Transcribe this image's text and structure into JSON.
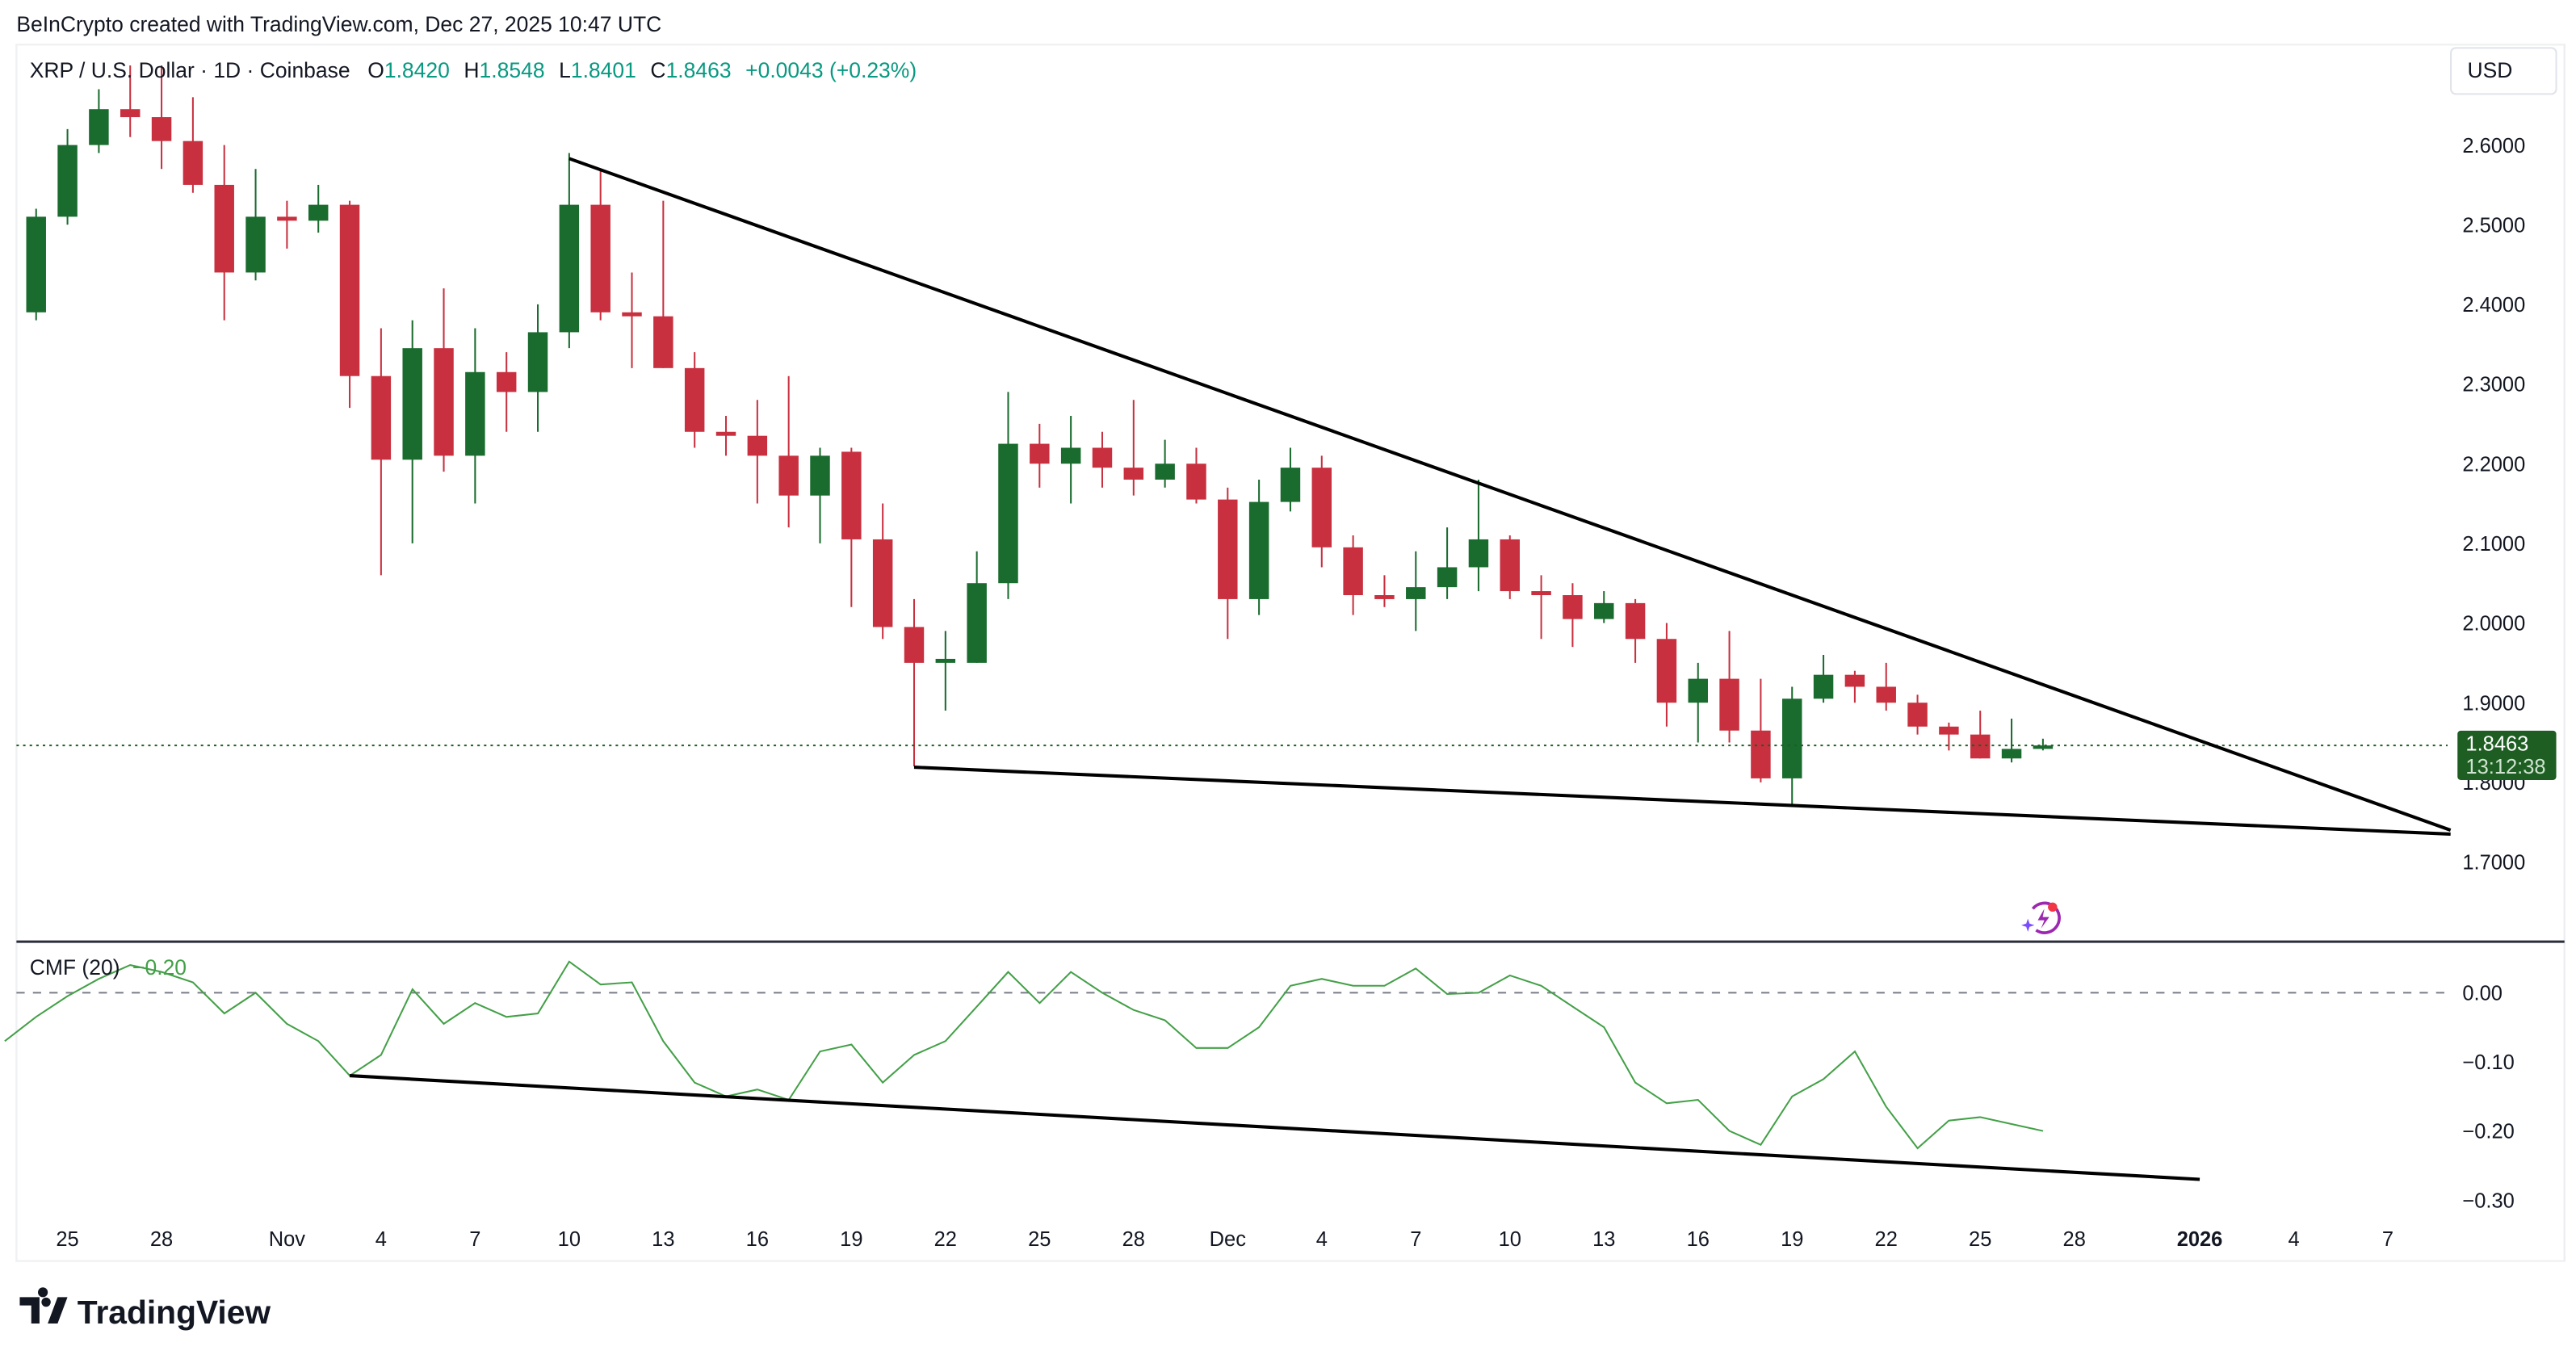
{
  "header": {
    "credit": "BeInCrypto created with TradingView.com, Dec 27, 2025 10:47 UTC"
  },
  "legend": {
    "symbol": "XRP / U.S. Dollar · 1D · Coinbase",
    "o_label": "O",
    "o": "1.8420",
    "h_label": "H",
    "h": "1.8548",
    "l_label": "L",
    "l": "1.8401",
    "c_label": "C",
    "c": "1.8463",
    "change": "+0.0043 (+0.23%)"
  },
  "currency_button": "USD",
  "last_price": {
    "price": "1.8463",
    "countdown": "13:12:38",
    "value": 1.8463
  },
  "colors": {
    "up": "#1a6b2e",
    "down": "#c8303f",
    "cmf": "#43a047",
    "label_bg": "#1e5e22",
    "accent_text": "#089981"
  },
  "icons": {
    "assistant": "lightning-sparkle-icon",
    "logo": "tradingview-logo"
  },
  "logo_text": "TradingView",
  "chart_data": [
    {
      "type": "candlestick",
      "title": "XRP / U.S. Dollar · 1D · Coinbase",
      "ylim": [
        1.63,
        2.72
      ],
      "y_ticks": [
        "2.6000",
        "2.5000",
        "2.4000",
        "2.3000",
        "2.2000",
        "2.1000",
        "2.0000",
        "1.9000",
        "1.8000",
        "1.7000"
      ],
      "x_ticks": [
        {
          "label": "25",
          "date": "2025-10-25"
        },
        {
          "label": "28",
          "date": "2025-10-28"
        },
        {
          "label": "Nov",
          "date": "2025-11-01"
        },
        {
          "label": "4",
          "date": "2025-11-04"
        },
        {
          "label": "7",
          "date": "2025-11-07"
        },
        {
          "label": "10",
          "date": "2025-11-10"
        },
        {
          "label": "13",
          "date": "2025-11-13"
        },
        {
          "label": "16",
          "date": "2025-11-16"
        },
        {
          "label": "19",
          "date": "2025-11-19"
        },
        {
          "label": "22",
          "date": "2025-11-22"
        },
        {
          "label": "25",
          "date": "2025-11-25"
        },
        {
          "label": "28",
          "date": "2025-11-28"
        },
        {
          "label": "Dec",
          "date": "2025-12-01"
        },
        {
          "label": "4",
          "date": "2025-12-04"
        },
        {
          "label": "7",
          "date": "2025-12-07"
        },
        {
          "label": "10",
          "date": "2025-12-10"
        },
        {
          "label": "13",
          "date": "2025-12-13"
        },
        {
          "label": "16",
          "date": "2025-12-16"
        },
        {
          "label": "19",
          "date": "2025-12-19"
        },
        {
          "label": "22",
          "date": "2025-12-22"
        },
        {
          "label": "25",
          "date": "2025-12-25"
        },
        {
          "label": "28",
          "date": "2025-12-28"
        },
        {
          "label": "2026",
          "date": "2026-01-01",
          "bold": true
        },
        {
          "label": "4",
          "date": "2026-01-04"
        },
        {
          "label": "7",
          "date": "2026-01-07"
        }
      ],
      "candles_columns": [
        "date",
        "open",
        "high",
        "low",
        "close"
      ],
      "candles": [
        [
          "2025-10-24",
          2.39,
          2.52,
          2.38,
          2.51
        ],
        [
          "2025-10-25",
          2.51,
          2.62,
          2.5,
          2.6
        ],
        [
          "2025-10-26",
          2.6,
          2.67,
          2.59,
          2.645
        ],
        [
          "2025-10-27",
          2.645,
          2.7,
          2.61,
          2.635
        ],
        [
          "2025-10-28",
          2.635,
          2.7,
          2.57,
          2.605
        ],
        [
          "2025-10-29",
          2.605,
          2.66,
          2.54,
          2.55
        ],
        [
          "2025-10-30",
          2.55,
          2.6,
          2.38,
          2.44
        ],
        [
          "2025-10-31",
          2.44,
          2.57,
          2.43,
          2.51
        ],
        [
          "2025-11-01",
          2.51,
          2.53,
          2.47,
          2.505
        ],
        [
          "2025-11-02",
          2.505,
          2.55,
          2.49,
          2.525
        ],
        [
          "2025-11-03",
          2.525,
          2.53,
          2.27,
          2.31
        ],
        [
          "2025-11-04",
          2.31,
          2.37,
          2.06,
          2.205
        ],
        [
          "2025-11-05",
          2.205,
          2.38,
          2.1,
          2.345
        ],
        [
          "2025-11-06",
          2.345,
          2.42,
          2.19,
          2.21
        ],
        [
          "2025-11-07",
          2.21,
          2.37,
          2.15,
          2.315
        ],
        [
          "2025-11-08",
          2.315,
          2.34,
          2.24,
          2.29
        ],
        [
          "2025-11-09",
          2.29,
          2.4,
          2.24,
          2.365
        ],
        [
          "2025-11-10",
          2.365,
          2.59,
          2.345,
          2.525
        ],
        [
          "2025-11-11",
          2.525,
          2.57,
          2.38,
          2.39
        ],
        [
          "2025-11-12",
          2.39,
          2.44,
          2.32,
          2.385
        ],
        [
          "2025-11-13",
          2.385,
          2.53,
          2.32,
          2.32
        ],
        [
          "2025-11-14",
          2.32,
          2.34,
          2.22,
          2.24
        ],
        [
          "2025-11-15",
          2.24,
          2.26,
          2.21,
          2.235
        ],
        [
          "2025-11-16",
          2.235,
          2.28,
          2.15,
          2.21
        ],
        [
          "2025-11-17",
          2.21,
          2.31,
          2.12,
          2.16
        ],
        [
          "2025-11-18",
          2.16,
          2.22,
          2.1,
          2.21
        ],
        [
          "2025-11-19",
          2.215,
          2.22,
          2.02,
          2.105
        ],
        [
          "2025-11-20",
          2.105,
          2.15,
          1.98,
          1.995
        ],
        [
          "2025-11-21",
          1.995,
          2.03,
          1.82,
          1.95
        ],
        [
          "2025-11-22",
          1.95,
          1.99,
          1.89,
          1.955
        ],
        [
          "2025-11-23",
          1.95,
          2.09,
          1.95,
          2.05
        ],
        [
          "2025-11-24",
          2.05,
          2.29,
          2.03,
          2.225
        ],
        [
          "2025-11-25",
          2.225,
          2.25,
          2.17,
          2.2
        ],
        [
          "2025-11-26",
          2.2,
          2.26,
          2.15,
          2.22
        ],
        [
          "2025-11-27",
          2.22,
          2.24,
          2.17,
          2.195
        ],
        [
          "2025-11-28",
          2.195,
          2.28,
          2.16,
          2.18
        ],
        [
          "2025-11-29",
          2.18,
          2.23,
          2.17,
          2.2
        ],
        [
          "2025-11-30",
          2.2,
          2.22,
          2.15,
          2.155
        ],
        [
          "2025-12-01",
          2.155,
          2.17,
          1.98,
          2.03
        ],
        [
          "2025-12-02",
          2.03,
          2.18,
          2.01,
          2.152
        ],
        [
          "2025-12-03",
          2.152,
          2.22,
          2.14,
          2.195
        ],
        [
          "2025-12-04",
          2.195,
          2.21,
          2.07,
          2.095
        ],
        [
          "2025-12-05",
          2.095,
          2.11,
          2.01,
          2.035
        ],
        [
          "2025-12-06",
          2.035,
          2.06,
          2.02,
          2.03
        ],
        [
          "2025-12-07",
          2.03,
          2.09,
          1.99,
          2.045
        ],
        [
          "2025-12-08",
          2.045,
          2.12,
          2.03,
          2.07
        ],
        [
          "2025-12-09",
          2.07,
          2.18,
          2.04,
          2.105
        ],
        [
          "2025-12-10",
          2.105,
          2.11,
          2.03,
          2.04
        ],
        [
          "2025-12-11",
          2.04,
          2.06,
          1.98,
          2.035
        ],
        [
          "2025-12-12",
          2.035,
          2.05,
          1.97,
          2.005
        ],
        [
          "2025-12-13",
          2.005,
          2.04,
          2.0,
          2.025
        ],
        [
          "2025-12-14",
          2.025,
          2.03,
          1.95,
          1.98
        ],
        [
          "2025-12-15",
          1.98,
          2.0,
          1.87,
          1.9
        ],
        [
          "2025-12-16",
          1.9,
          1.95,
          1.85,
          1.93
        ],
        [
          "2025-12-17",
          1.93,
          1.99,
          1.85,
          1.865
        ],
        [
          "2025-12-18",
          1.865,
          1.93,
          1.8,
          1.805
        ],
        [
          "2025-12-19",
          1.805,
          1.92,
          1.77,
          1.905
        ],
        [
          "2025-12-20",
          1.905,
          1.96,
          1.9,
          1.935
        ],
        [
          "2025-12-21",
          1.935,
          1.94,
          1.9,
          1.92
        ],
        [
          "2025-12-22",
          1.92,
          1.95,
          1.89,
          1.9
        ],
        [
          "2025-12-23",
          1.9,
          1.91,
          1.86,
          1.87
        ],
        [
          "2025-12-24",
          1.87,
          1.875,
          1.84,
          1.86
        ],
        [
          "2025-12-25",
          1.86,
          1.89,
          1.83,
          1.83
        ],
        [
          "2025-12-26",
          1.83,
          1.88,
          1.825,
          1.842
        ],
        [
          "2025-12-27",
          1.842,
          1.8548,
          1.8401,
          1.8463
        ]
      ],
      "trendlines": [
        {
          "from": [
            "2025-11-10",
            2.583
          ],
          "to": [
            "2026-01-09",
            1.74
          ]
        },
        {
          "from": [
            "2025-11-21",
            1.819
          ],
          "to": [
            "2026-01-09",
            1.735
          ]
        }
      ]
    },
    {
      "type": "line",
      "title": "CMF (20)",
      "last_value": "−0.20",
      "ylim": [
        -0.34,
        0.08
      ],
      "y_ticks": [
        "0.00",
        "−0.10",
        "−0.20",
        "−0.30"
      ],
      "zero_line": "dashed",
      "start_date": "2025-10-23",
      "values": [
        -0.07,
        -0.035,
        -0.005,
        0.02,
        0.04,
        0.03,
        0.015,
        -0.03,
        0.0,
        -0.045,
        -0.07,
        -0.12,
        -0.09,
        0.005,
        -0.045,
        -0.015,
        -0.035,
        -0.03,
        0.045,
        0.012,
        0.015,
        -0.07,
        -0.13,
        -0.15,
        -0.14,
        -0.155,
        -0.085,
        -0.075,
        -0.13,
        -0.09,
        -0.07,
        -0.02,
        0.03,
        -0.015,
        0.03,
        0.0,
        -0.025,
        -0.04,
        -0.08,
        -0.08,
        -0.05,
        0.01,
        0.02,
        0.01,
        0.01,
        0.035,
        -0.002,
        0.0,
        0.025,
        0.01,
        -0.02,
        -0.05,
        -0.13,
        -0.16,
        -0.155,
        -0.2,
        -0.22,
        -0.15,
        -0.125,
        -0.085,
        -0.165,
        -0.225,
        -0.185,
        -0.18,
        -0.19,
        -0.2
      ],
      "trendline": {
        "from": [
          "2025-11-03",
          -0.12
        ],
        "to": [
          "2026-01-01",
          -0.27
        ]
      }
    }
  ]
}
